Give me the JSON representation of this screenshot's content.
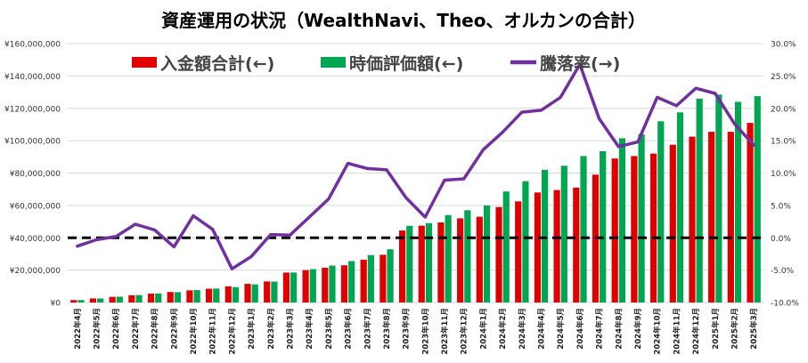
{
  "chart_data": {
    "type": "bar",
    "title": "資産運用の状況（WealthNavi、Theo、オルカンの合計）",
    "categories": [
      "2022年4月",
      "2022年5月",
      "2022年6月",
      "2022年7月",
      "2022年8月",
      "2022年9月",
      "2022年10月",
      "2022年11月",
      "2022年12月",
      "2023年1月",
      "2023年2月",
      "2023年3月",
      "2023年4月",
      "2023年5月",
      "2023年6月",
      "2023年7月",
      "2023年8月",
      "2023年9月",
      "2023年10月",
      "2023年11月",
      "2023年12月",
      "2024年1月",
      "2024年2月",
      "2024年3月",
      "2024年4月",
      "2024年5月",
      "2024年6月",
      "2024年7月",
      "2024年8月",
      "2024年9月",
      "2024年10月",
      "2024年11月",
      "2024年12月",
      "2025年1月",
      "2025年2月",
      "2025年3月"
    ],
    "series": [
      {
        "name": "入金額合計(←)",
        "type": "bar",
        "axis": "left",
        "color": "#e00000",
        "values": [
          1500000,
          2500000,
          3500000,
          4500000,
          5500000,
          6500000,
          7500000,
          8500000,
          10000000,
          11500000,
          13000000,
          18500000,
          20000000,
          21500000,
          23000000,
          26500000,
          29500000,
          44500000,
          47500000,
          49500000,
          52000000,
          53000000,
          59000000,
          62500000,
          68000000,
          69500000,
          71000000,
          79000000,
          89000000,
          90500000,
          92000000,
          97500000,
          102500000,
          105500000,
          105500000,
          111000000
        ]
      },
      {
        "name": "時価評価額(←)",
        "type": "bar",
        "axis": "left",
        "color": "#00a651",
        "values": [
          1500000,
          2500000,
          3600000,
          4600000,
          5600000,
          6400000,
          7700000,
          8600000,
          9500000,
          11200000,
          12900000,
          18500000,
          20600000,
          22800000,
          25600000,
          29300000,
          32900000,
          47400000,
          49000000,
          54000000,
          57000000,
          60000000,
          68600000,
          75000000,
          82000000,
          84500000,
          90500000,
          93500000,
          101500000,
          104000000,
          112000000,
          117500000,
          126000000,
          128500000,
          124000000,
          127500000
        ]
      },
      {
        "name": "騰落率(→)",
        "type": "line",
        "axis": "right",
        "color": "#7030a0",
        "values": [
          -1.3,
          -0.3,
          0.2,
          2.1,
          1.2,
          -1.4,
          3.4,
          1.3,
          -4.8,
          -2.9,
          0.5,
          0.4,
          3.2,
          6,
          11.5,
          10.7,
          10.5,
          6.2,
          3.2,
          8.9,
          9.1,
          13.6,
          16.3,
          19.4,
          19.7,
          21.7,
          26.8,
          18.4,
          14.1,
          14.8,
          21.7,
          20.4,
          23.1,
          22.3,
          17.6,
          14.3
        ]
      }
    ],
    "reference_line": {
      "axis": "left",
      "value": 40000000,
      "style": "dashed",
      "color": "#000000"
    },
    "left_axis": {
      "ylim": [
        0,
        160000000
      ],
      "tick_values": [
        0,
        20000000,
        40000000,
        60000000,
        80000000,
        100000000,
        120000000,
        140000000,
        160000000
      ],
      "tick_labels": [
        "¥0",
        "¥20,000,000",
        "¥40,000,000",
        "¥60,000,000",
        "¥80,000,000",
        "¥100,000,000",
        "¥120,000,000",
        "¥140,000,000",
        "¥160,000,000"
      ]
    },
    "right_axis": {
      "ylim": [
        -10,
        30
      ],
      "tick_values": [
        -10,
        -5,
        0,
        5,
        10,
        15,
        20,
        25,
        30
      ],
      "tick_labels": [
        "-10.0%",
        "-5.0%",
        "0.0%",
        "5.0%",
        "10.0%",
        "15.0%",
        "20.0%",
        "25.0%",
        "30.0%"
      ]
    },
    "grid": true,
    "legend": "top"
  }
}
